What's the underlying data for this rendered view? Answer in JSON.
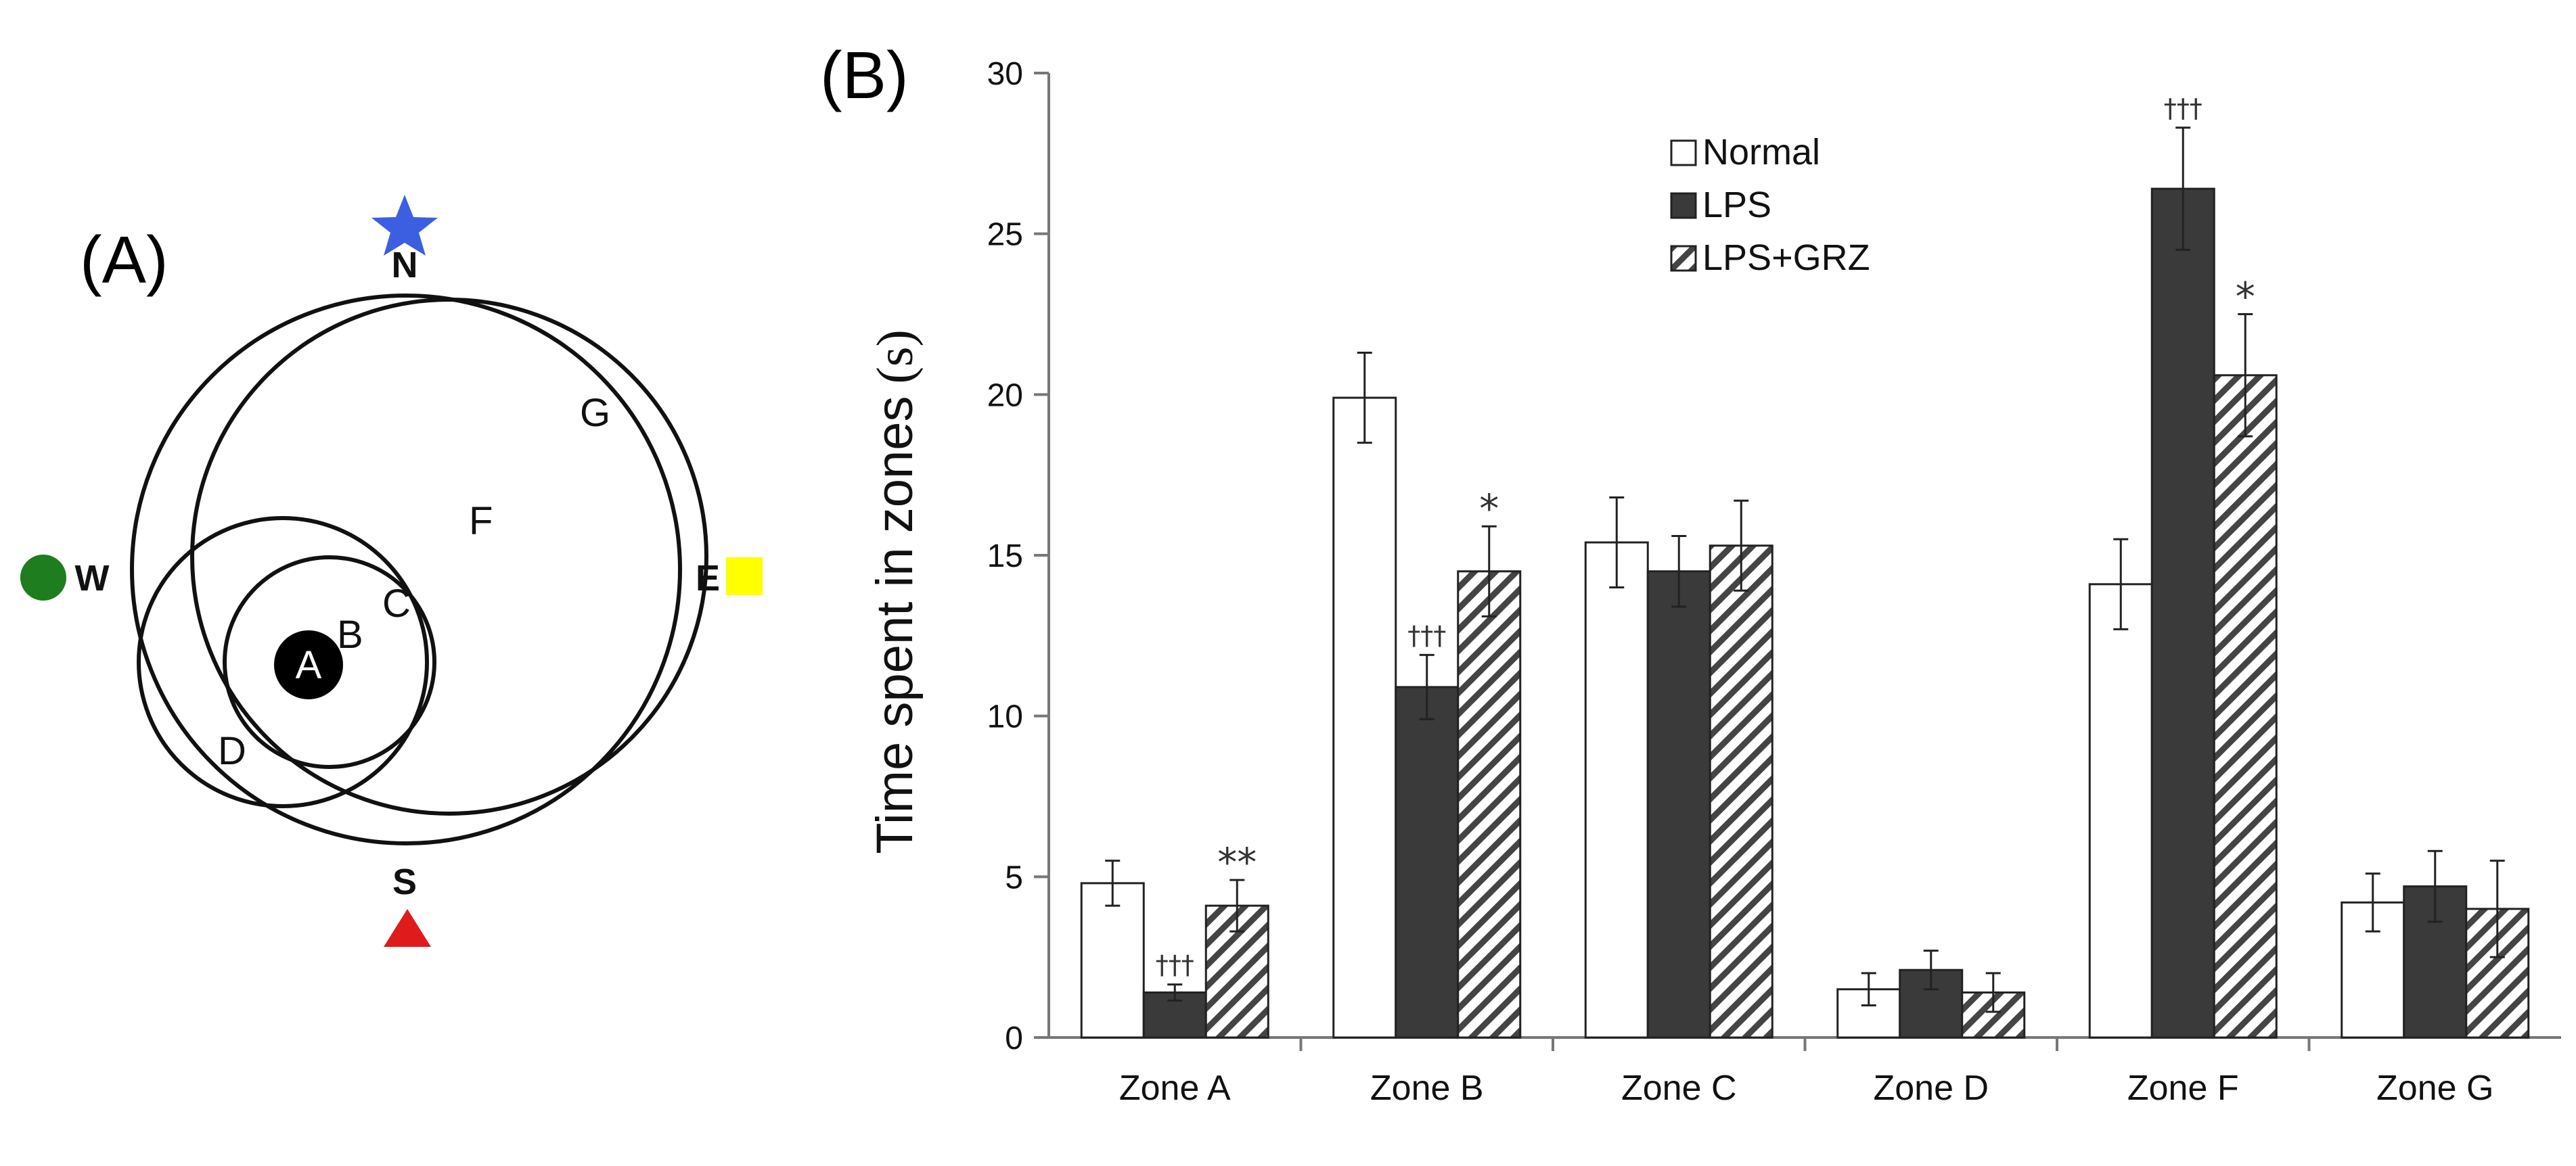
{
  "panel_a": {
    "label": "(A)",
    "compass": {
      "n": "N",
      "s": "S",
      "e": "E",
      "w": "W"
    },
    "zones": {
      "a": "A",
      "b": "B",
      "c": "C",
      "d": "D",
      "f": "F",
      "g": "G"
    },
    "markers": {
      "north": {
        "shape": "star",
        "icon": "star-icon",
        "color": "#3b5fe0"
      },
      "south": {
        "shape": "triangle",
        "icon": "triangle-icon",
        "color": "#e01b1b"
      },
      "east": {
        "shape": "square",
        "icon": "square-icon",
        "color": "#ffff00"
      },
      "west": {
        "shape": "circle",
        "icon": "circle-icon",
        "color": "#1e7d1e"
      }
    }
  },
  "chart_data": {
    "type": "bar",
    "panel_label": "(B)",
    "title": "",
    "xlabel": "",
    "ylabel": "Time spent in zones",
    "ylabel_unit": "(s)",
    "ylim": [
      0,
      30
    ],
    "yticks": [
      0,
      5,
      10,
      15,
      20,
      25,
      30
    ],
    "categories": [
      "Zone A",
      "Zone B",
      "Zone C",
      "Zone D",
      "Zone F",
      "Zone G"
    ],
    "legend_position": "top-center",
    "series": [
      {
        "name": "Normal",
        "fill": "white",
        "values": [
          4.8,
          19.9,
          15.4,
          1.5,
          14.1,
          4.2
        ],
        "errors": [
          0.7,
          1.4,
          1.4,
          0.5,
          1.4,
          0.9
        ],
        "annotations": [
          "",
          "",
          "",
          "",
          "",
          ""
        ]
      },
      {
        "name": "LPS",
        "fill": "dark",
        "values": [
          1.4,
          10.9,
          14.5,
          2.1,
          26.4,
          4.7
        ],
        "errors": [
          0.25,
          1.0,
          1.1,
          0.6,
          1.9,
          1.1
        ],
        "annotations": [
          "†††",
          "†††",
          "",
          "",
          "†††",
          ""
        ]
      },
      {
        "name": "LPS+GRZ",
        "fill": "hatched",
        "values": [
          4.1,
          14.5,
          15.3,
          1.4,
          20.6,
          4.0
        ],
        "errors": [
          0.8,
          1.4,
          1.4,
          0.6,
          1.9,
          1.5
        ],
        "annotations": [
          "**",
          "*",
          "",
          "",
          "*",
          ""
        ]
      }
    ]
  }
}
